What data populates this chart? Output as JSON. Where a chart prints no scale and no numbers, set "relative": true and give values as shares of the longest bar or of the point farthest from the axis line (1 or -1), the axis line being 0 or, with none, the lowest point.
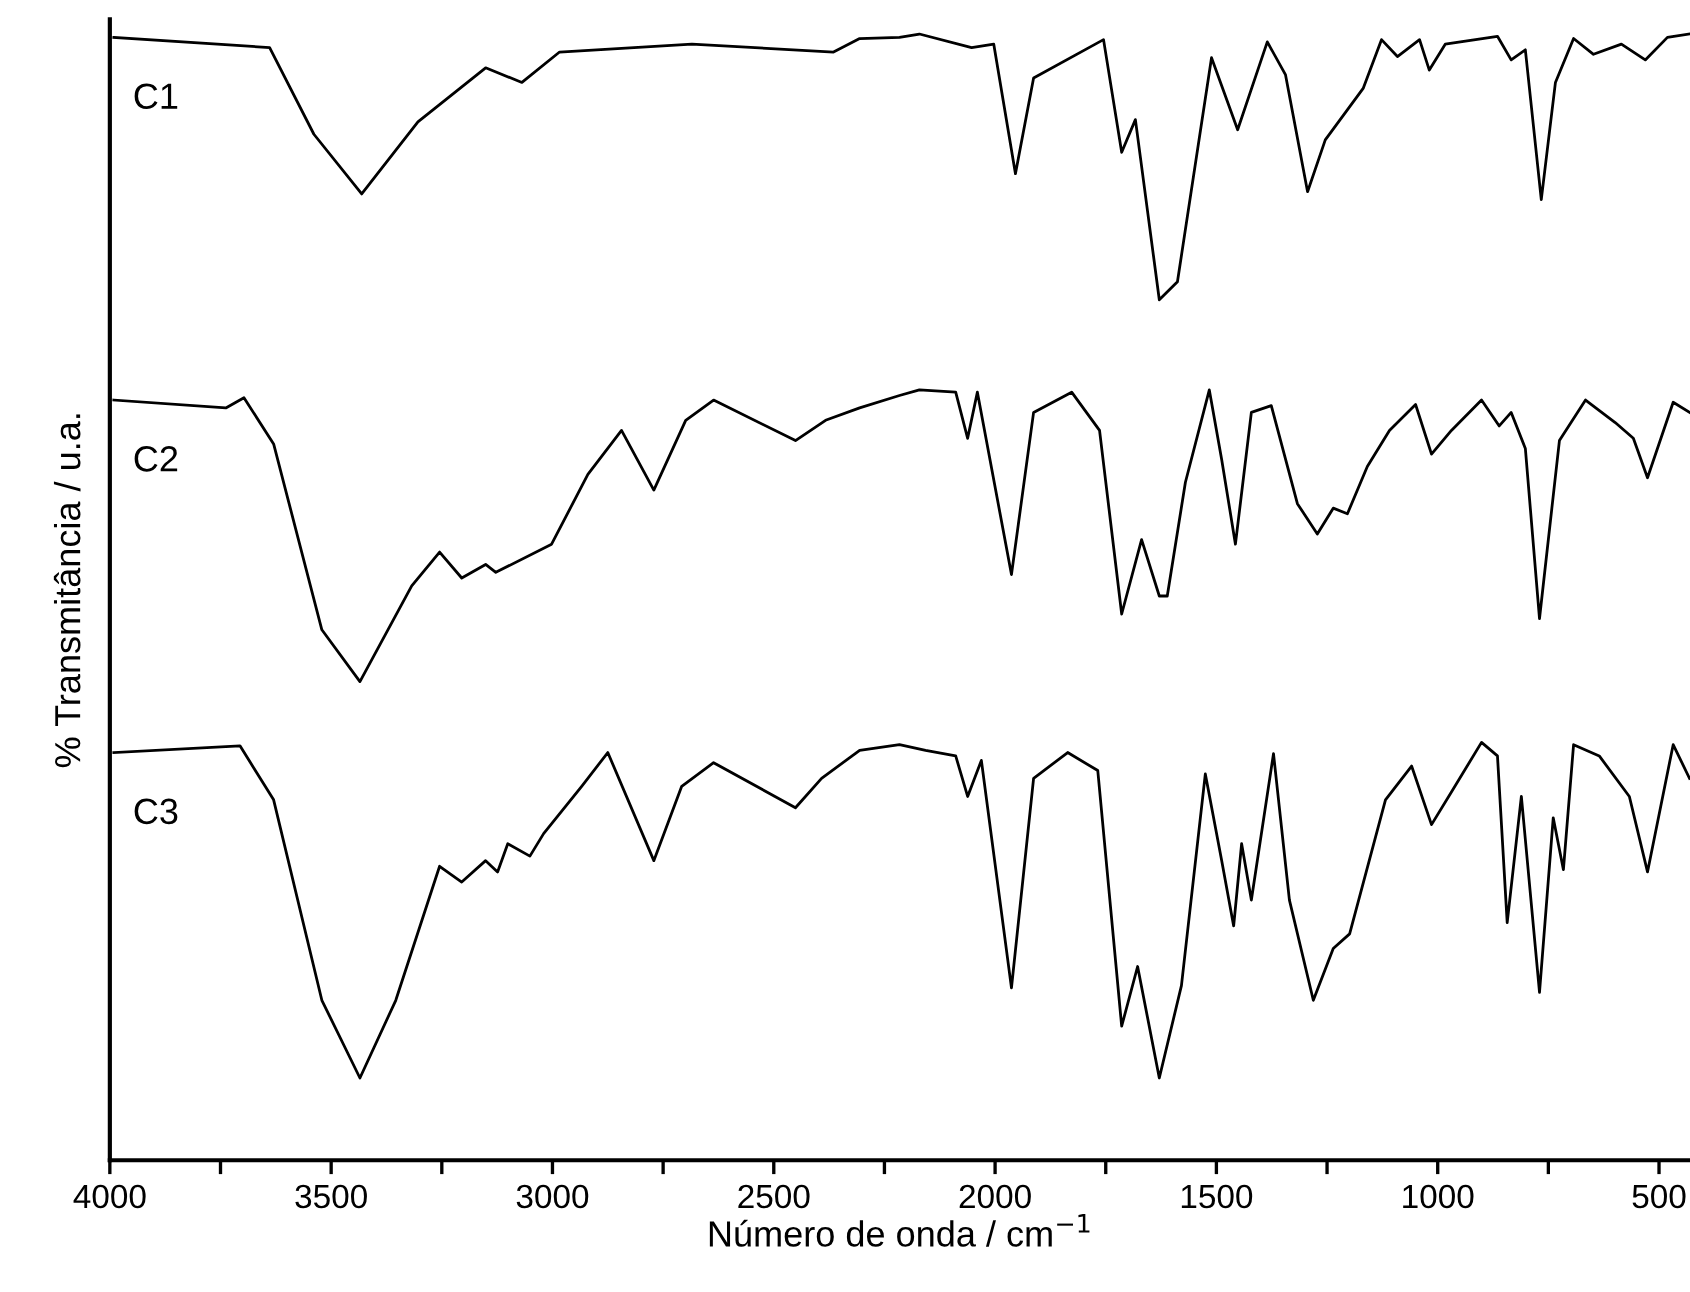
{
  "chart_data": {
    "type": "line",
    "relative": true,
    "xlabel": "Número de onda / cm$^{−1}$",
    "ylabel": "% Transmitância / u.a.",
    "xlim": [
      4000,
      430
    ],
    "xticks": [
      4000,
      {
        "value": 3750,
        "label": null
      },
      3500,
      {
        "value": 3250,
        "label": null
      },
      3000,
      {
        "value": 2750,
        "label": null
      },
      2500,
      {
        "value": 2250,
        "label": null
      },
      2000,
      {
        "value": 1750,
        "label": null
      },
      1500,
      {
        "value": 1250,
        "label": null
      },
      1000,
      {
        "value": 750,
        "label": null
      },
      500
    ],
    "tick_labels": "x",
    "grid": false,
    "legend": false,
    "marker": "none",
    "line_style": "solid",
    "series": [
      {
        "name": "C1",
        "color": "#000000",
        "x": [
          3991,
          3639,
          3539,
          3431,
          3304,
          3151,
          3069,
          2984,
          2685,
          2365,
          2306,
          2216,
          2171,
          2053,
          2003,
          1954,
          1913,
          1755,
          1714,
          1683,
          1629,
          1588,
          1511,
          1452,
          1385,
          1344,
          1294,
          1254,
          1168,
          1127,
          1091,
          1041,
          1019,
          983,
          865,
          834,
          802,
          766,
          734,
          693,
          648,
          585,
          531,
          481,
          431
        ],
        "values": [
          0.997,
          0.988,
          0.911,
          0.858,
          0.922,
          0.97,
          0.957,
          0.984,
          0.991,
          0.984,
          0.996,
          0.997,
          1.0,
          0.988,
          0.991,
          0.876,
          0.961,
          0.995,
          0.895,
          0.924,
          0.764,
          0.78,
          0.979,
          0.915,
          0.993,
          0.964,
          0.86,
          0.906,
          0.952,
          0.995,
          0.98,
          0.995,
          0.968,
          0.991,
          0.998,
          0.977,
          0.986,
          0.853,
          0.957,
          0.996,
          0.982,
          0.991,
          0.977,
          0.997,
          1.0
        ]
      },
      {
        "name": "C2",
        "color": "#000000",
        "x": [
          3991,
          3738,
          3697,
          3630,
          3521,
          3435,
          3318,
          3255,
          3205,
          3151,
          3128,
          3002,
          2920,
          2844,
          2771,
          2699,
          2636,
          2451,
          2383,
          2306,
          2216,
          2171,
          2089,
          2062,
          2040,
          1963,
          1913,
          1827,
          1764,
          1714,
          1669,
          1629,
          1611,
          1570,
          1516,
          1488,
          1457,
          1421,
          1376,
          1317,
          1272,
          1236,
          1204,
          1159,
          1109,
          1050,
          1014,
          969,
          901,
          861,
          834,
          802,
          770,
          725,
          666,
          599,
          558,
          526,
          468,
          431
        ],
        "values": [
          0.675,
          0.668,
          0.677,
          0.636,
          0.471,
          0.425,
          0.51,
          0.54,
          0.517,
          0.529,
          0.522,
          0.547,
          0.609,
          0.648,
          0.595,
          0.657,
          0.675,
          0.639,
          0.657,
          0.668,
          0.679,
          0.684,
          0.682,
          0.641,
          0.682,
          0.52,
          0.664,
          0.682,
          0.648,
          0.485,
          0.551,
          0.501,
          0.501,
          0.602,
          0.684,
          0.622,
          0.547,
          0.664,
          0.67,
          0.583,
          0.556,
          0.579,
          0.574,
          0.616,
          0.648,
          0.671,
          0.627,
          0.648,
          0.675,
          0.652,
          0.664,
          0.632,
          0.481,
          0.639,
          0.675,
          0.655,
          0.641,
          0.606,
          0.673,
          0.664
        ]
      },
      {
        "name": "C3",
        "color": "#000000",
        "x": [
          3991,
          3706,
          3630,
          3521,
          3435,
          3354,
          3255,
          3205,
          3151,
          3124,
          3101,
          3051,
          3020,
          2934,
          2875,
          2771,
          2708,
          2636,
          2451,
          2392,
          2306,
          2216,
          2157,
          2089,
          2062,
          2031,
          1963,
          1913,
          1836,
          1768,
          1714,
          1678,
          1629,
          1579,
          1525,
          1488,
          1461,
          1443,
          1421,
          1371,
          1335,
          1281,
          1236,
          1199,
          1118,
          1059,
          1014,
          969,
          901,
          865,
          843,
          811,
          770,
          739,
          716,
          693,
          635,
          567,
          526,
          468,
          431
        ],
        "values": [
          0.362,
          0.368,
          0.32,
          0.142,
          0.073,
          0.142,
          0.261,
          0.247,
          0.266,
          0.256,
          0.281,
          0.27,
          0.29,
          0.332,
          0.362,
          0.266,
          0.332,
          0.353,
          0.313,
          0.339,
          0.364,
          0.369,
          0.364,
          0.359,
          0.323,
          0.355,
          0.153,
          0.339,
          0.362,
          0.346,
          0.119,
          0.172,
          0.073,
          0.155,
          0.343,
          0.266,
          0.208,
          0.281,
          0.231,
          0.361,
          0.231,
          0.142,
          0.188,
          0.201,
          0.32,
          0.35,
          0.298,
          0.327,
          0.371,
          0.359,
          0.211,
          0.323,
          0.149,
          0.304,
          0.258,
          0.369,
          0.359,
          0.323,
          0.256,
          0.369,
          0.339
        ]
      }
    ]
  }
}
